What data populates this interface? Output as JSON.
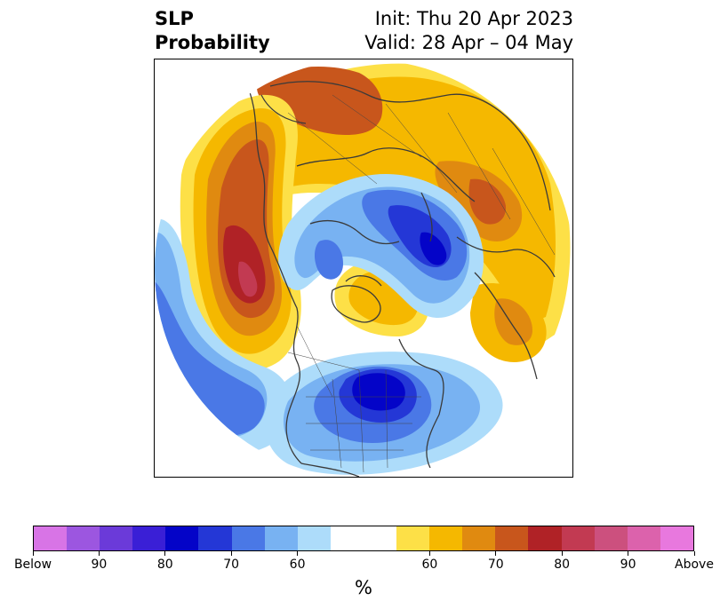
{
  "title": {
    "left_line1": "SLP",
    "left_line2": "Probability",
    "right_line1": "Init: Thu 20 Apr 2023",
    "right_line2": "Valid: 28 Apr – 04 May"
  },
  "map": {
    "projection": "north-polar-stereographic",
    "regions": [
      {
        "name": "northeast-pacific-high",
        "category": "above",
        "level": "90"
      },
      {
        "name": "europe-high",
        "category": "above",
        "level": "70"
      },
      {
        "name": "north-america-low",
        "category": "below",
        "level": "85"
      },
      {
        "name": "arctic-siberia-low",
        "category": "below",
        "level": "75"
      },
      {
        "name": "north-pacific-low",
        "category": "below",
        "level": "70"
      },
      {
        "name": "north-atlantic-low",
        "category": "below",
        "level": "60"
      }
    ]
  },
  "colorbar": {
    "colors": [
      "#d874e6",
      "#9c56e0",
      "#6b3ad9",
      "#3a1fd6",
      "#0404c8",
      "#2437d6",
      "#4a78e6",
      "#78b2f2",
      "#addcfa",
      "#ffffff",
      "#ffffff",
      "#fde047",
      "#f5b800",
      "#e08a10",
      "#c8561c",
      "#b02226",
      "#c23a52",
      "#cc507e",
      "#dc62ac",
      "#e878de"
    ],
    "labels": [
      "Below",
      "90",
      "80",
      "70",
      "60",
      "60",
      "70",
      "80",
      "90",
      "Above"
    ],
    "unit": "%"
  }
}
